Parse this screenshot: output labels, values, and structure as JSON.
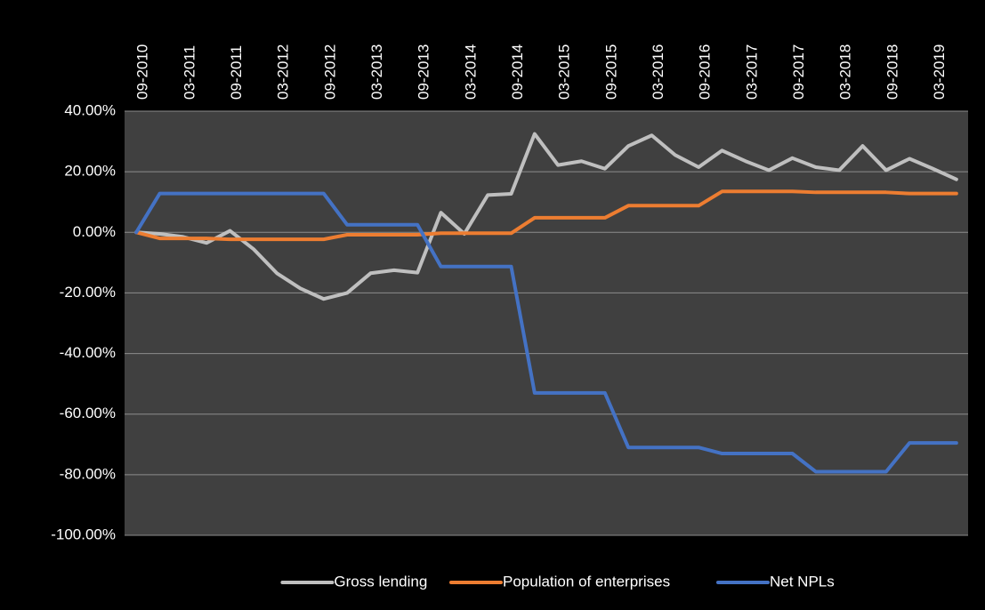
{
  "chart_data": {
    "type": "line",
    "categories": [
      "09-2010",
      null,
      "03-2011",
      null,
      "09-2011",
      null,
      "03-2012",
      null,
      "09-2012",
      null,
      "03-2013",
      null,
      "09-2013",
      null,
      "03-2014",
      null,
      "09-2014",
      null,
      "03-2015",
      null,
      "09-2015",
      null,
      "03-2016",
      null,
      "09-2016",
      null,
      "03-2017",
      null,
      "09-2017",
      null,
      "03-2018",
      null,
      "09-2018",
      null,
      "03-2019",
      null
    ],
    "series": [
      {
        "name": "Gross lending",
        "color": "#bfbfbf",
        "values": [
          0,
          -0.5,
          -1.5,
          -3.5,
          0.5,
          -5.5,
          -13.5,
          -18.5,
          -22,
          -20,
          -13.5,
          -12.5,
          -13.3,
          6.5,
          -0.5,
          12.3,
          12.7,
          32.5,
          22.2,
          23.5,
          21,
          28.5,
          32,
          25.5,
          21.5,
          27,
          23.5,
          20.5,
          24.5,
          21.5,
          20.5,
          28.5,
          20.5,
          24.3,
          21,
          17.5
        ]
      },
      {
        "name": "Population of enterprises",
        "color": "#ed7d31",
        "values": [
          0,
          -2,
          -2,
          -2,
          -2.3,
          -2.3,
          -2.3,
          -2.3,
          -2.3,
          -0.8,
          -0.8,
          -0.8,
          -0.8,
          -0.3,
          -0.3,
          -0.3,
          -0.3,
          4.8,
          4.8,
          4.8,
          4.8,
          8.8,
          8.8,
          8.8,
          8.8,
          13.5,
          13.5,
          13.5,
          13.5,
          13.2,
          13.2,
          13.2,
          13.2,
          12.8,
          12.8,
          12.8
        ]
      },
      {
        "name": "Net NPLs",
        "color": "#4472c4",
        "values": [
          0,
          12.8,
          12.8,
          12.8,
          12.8,
          12.8,
          12.8,
          12.8,
          12.8,
          2.5,
          2.5,
          2.5,
          2.5,
          -11.3,
          -11.3,
          -11.3,
          -11.3,
          -53,
          -53,
          -53,
          -53,
          -71,
          -71,
          -71,
          -71,
          -73,
          -73,
          -73,
          -73,
          -79,
          -79,
          -79,
          -79,
          -69.5,
          -69.5,
          -69.5
        ]
      }
    ],
    "ylim": [
      -100,
      40
    ],
    "yticks": [
      {
        "value": -100,
        "label": "-100.00%"
      },
      {
        "value": -80,
        "label": "-80.00%"
      },
      {
        "value": -60,
        "label": "-60.00%"
      },
      {
        "value": -40,
        "label": "-40.00%"
      },
      {
        "value": -20,
        "label": "-20.00%"
      },
      {
        "value": 0,
        "label": "0.00%"
      },
      {
        "value": 20,
        "label": "20.00%"
      },
      {
        "value": 40,
        "label": "40.00%"
      }
    ],
    "grid": true,
    "legend": "bottom"
  }
}
